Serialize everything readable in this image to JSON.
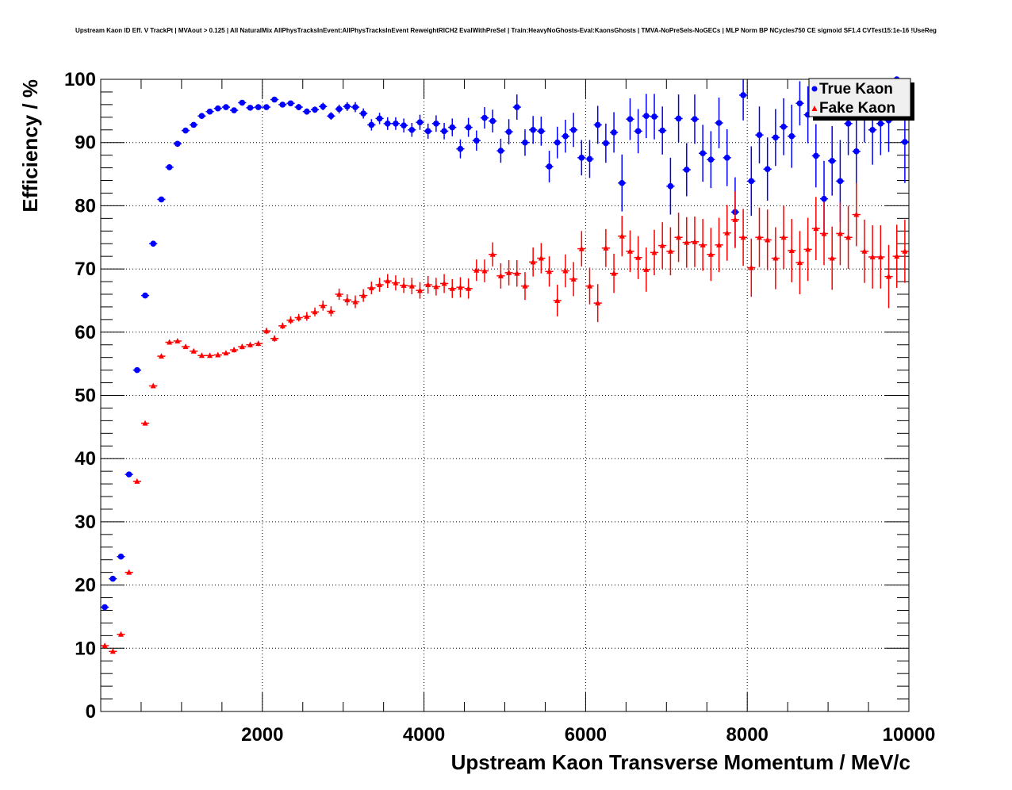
{
  "chart_data": {
    "type": "scatter",
    "title": "Upstream Kaon ID Eff. V TrackPt | MVAout > 0.125 | All NaturalMix AllPhysTracksInEvent:AllPhysTracksInEvent ReweightRICH2 EvalWithPreSel | Train:HeavyNoGhosts-Eval:KaonsGhosts | TMVA-NoPreSels-NoGECs | MLP Norm BP NCycles750 CE sigmoid SF1.4 CVTest15:1e-16 !UseReg",
    "xlabel": "Upstream Kaon Transverse Momentum / MeV/c",
    "ylabel": "Efficiency / %",
    "xlim": [
      0,
      10000
    ],
    "ylim": [
      0,
      100
    ],
    "grid": true,
    "legend_position": "top-right",
    "x_ticks": [
      "2000",
      "4000",
      "6000",
      "8000",
      "10000"
    ],
    "y_ticks": [
      "0",
      "10",
      "20",
      "30",
      "40",
      "50",
      "60",
      "70",
      "80",
      "90",
      "100"
    ],
    "bin_width": 100,
    "x_start": 50,
    "series": [
      {
        "name": "True Kaon",
        "color": "#0000ff",
        "marker": "circle",
        "values": [
          16.5,
          21,
          24.5,
          37.5,
          54,
          65.8,
          74,
          81,
          86.1,
          89.8,
          91.9,
          92.8,
          94.2,
          94.9,
          95.4,
          95.6,
          95.1,
          96.3,
          95.5,
          95.6,
          95.6,
          96.8,
          96.0,
          96.2,
          95.6,
          94.9,
          95.2,
          95.7,
          94.2,
          95.3,
          95.7,
          95.6,
          94.6,
          92.8,
          93.8,
          93.0,
          93.0,
          92.7,
          92.0,
          93.2,
          91.8,
          93.0,
          91.8,
          92.4,
          89.0,
          92.4,
          90.3,
          93.9,
          93.4,
          88.7,
          91.7,
          95.6,
          90.0,
          92.0,
          91.8,
          86.2,
          90.0,
          91.0,
          92.0,
          87.6,
          87.4,
          92.8,
          89.9,
          91.6,
          83.6,
          93.7,
          91.8,
          94.2,
          94.1,
          91.9,
          83.1,
          93.8,
          85.7,
          93.7,
          88.3,
          87.3,
          93.1,
          87.6,
          79.0,
          97.5,
          83.9,
          91.2,
          85.8,
          90.8,
          92.5,
          91.0,
          96.2,
          94.4,
          87.9,
          81.1,
          87.1,
          83.9,
          93.0,
          88.6,
          95.0,
          92.0,
          93.0,
          93.5,
          100.0,
          90.1
        ],
        "errors": [
          0.3,
          0.3,
          0.3,
          0.3,
          0.3,
          0.3,
          0.3,
          0.3,
          0.3,
          0.3,
          0.3,
          0.3,
          0.3,
          0.3,
          0.3,
          0.3,
          0.3,
          0.3,
          0.3,
          0.3,
          0.4,
          0.4,
          0.4,
          0.4,
          0.5,
          0.5,
          0.5,
          0.6,
          0.6,
          0.7,
          0.7,
          0.8,
          0.8,
          0.9,
          0.9,
          1.0,
          1.0,
          1.1,
          1.1,
          1.2,
          1.2,
          1.3,
          1.3,
          1.4,
          1.5,
          1.5,
          1.6,
          1.7,
          1.8,
          1.9,
          2.0,
          2.0,
          2.1,
          2.2,
          2.3,
          2.5,
          2.5,
          2.6,
          2.7,
          2.8,
          3.0,
          3.0,
          3.1,
          3.2,
          4.5,
          3.3,
          3.5,
          3.5,
          3.6,
          3.8,
          4.5,
          3.8,
          4.2,
          3.9,
          4.5,
          4.5,
          4.0,
          4.5,
          5.5,
          4.0,
          5.5,
          4.5,
          5.0,
          4.5,
          4.5,
          5.0,
          3.5,
          4.5,
          5.0,
          6.0,
          5.5,
          6.5,
          5.0,
          6.0,
          5.0,
          5.5,
          5.0,
          5.0,
          2.0,
          6.5
        ]
      },
      {
        "name": "Fake Kaon",
        "color": "#ff0000",
        "marker": "triangle",
        "values": [
          10.4,
          9.5,
          12.2,
          22,
          36.4,
          45.6,
          51.5,
          56.2,
          58.4,
          58.6,
          57.7,
          57.0,
          56.3,
          56.3,
          56.4,
          56.7,
          57.2,
          57.7,
          58.0,
          58.2,
          60.2,
          59.0,
          61.0,
          61.9,
          62.3,
          62.5,
          63.2,
          64.2,
          63.3,
          66.0,
          65.1,
          64.8,
          65.8,
          67.0,
          67.5,
          68.1,
          67.8,
          67.4,
          67.3,
          66.6,
          67.5,
          67.2,
          67.7,
          66.9,
          67.1,
          66.9,
          69.8,
          69.7,
          72.3,
          68.9,
          69.4,
          69.3,
          67.3,
          71.1,
          71.7,
          69.6,
          65.0,
          69.7,
          68.4,
          73.2,
          67.3,
          64.6,
          73.3,
          69.3,
          75.2,
          72.8,
          71.8,
          69.9,
          72.6,
          73.7,
          72.8,
          75.0,
          74.2,
          74.3,
          73.8,
          72.3,
          73.8,
          75.7,
          77.8,
          75.0,
          70.2,
          75.0,
          74.6,
          71.7,
          75.0,
          72.9,
          71.0,
          73.1,
          76.4,
          75.6,
          71.7,
          75.6,
          75.0,
          78.6,
          72.8,
          71.9,
          71.9,
          68.8,
          72.0,
          72.8
        ],
        "errors": [
          0.2,
          0.2,
          0.2,
          0.2,
          0.2,
          0.2,
          0.2,
          0.2,
          0.3,
          0.3,
          0.3,
          0.3,
          0.3,
          0.3,
          0.3,
          0.3,
          0.4,
          0.4,
          0.4,
          0.4,
          0.5,
          0.5,
          0.5,
          0.6,
          0.6,
          0.7,
          0.7,
          0.8,
          0.8,
          0.9,
          0.9,
          1.0,
          1.0,
          1.0,
          1.1,
          1.1,
          1.2,
          1.2,
          1.3,
          1.3,
          1.4,
          1.4,
          1.5,
          1.5,
          1.6,
          1.6,
          1.7,
          1.8,
          1.9,
          2.0,
          2.0,
          2.1,
          2.2,
          2.3,
          2.4,
          2.4,
          2.5,
          2.6,
          2.7,
          2.8,
          2.9,
          3.0,
          3.0,
          3.1,
          3.2,
          3.3,
          3.4,
          3.5,
          3.6,
          3.7,
          3.8,
          3.9,
          4.0,
          4.0,
          4.1,
          4.2,
          4.3,
          4.4,
          4.5,
          4.5,
          4.6,
          4.7,
          4.8,
          4.9,
          5.0,
          5.0,
          5.0,
          5.0,
          5.0,
          5.0,
          5.0,
          5.0,
          5.0,
          5.0,
          5.0,
          5.0,
          5.0,
          5.0,
          5.0,
          5.0
        ]
      }
    ]
  }
}
